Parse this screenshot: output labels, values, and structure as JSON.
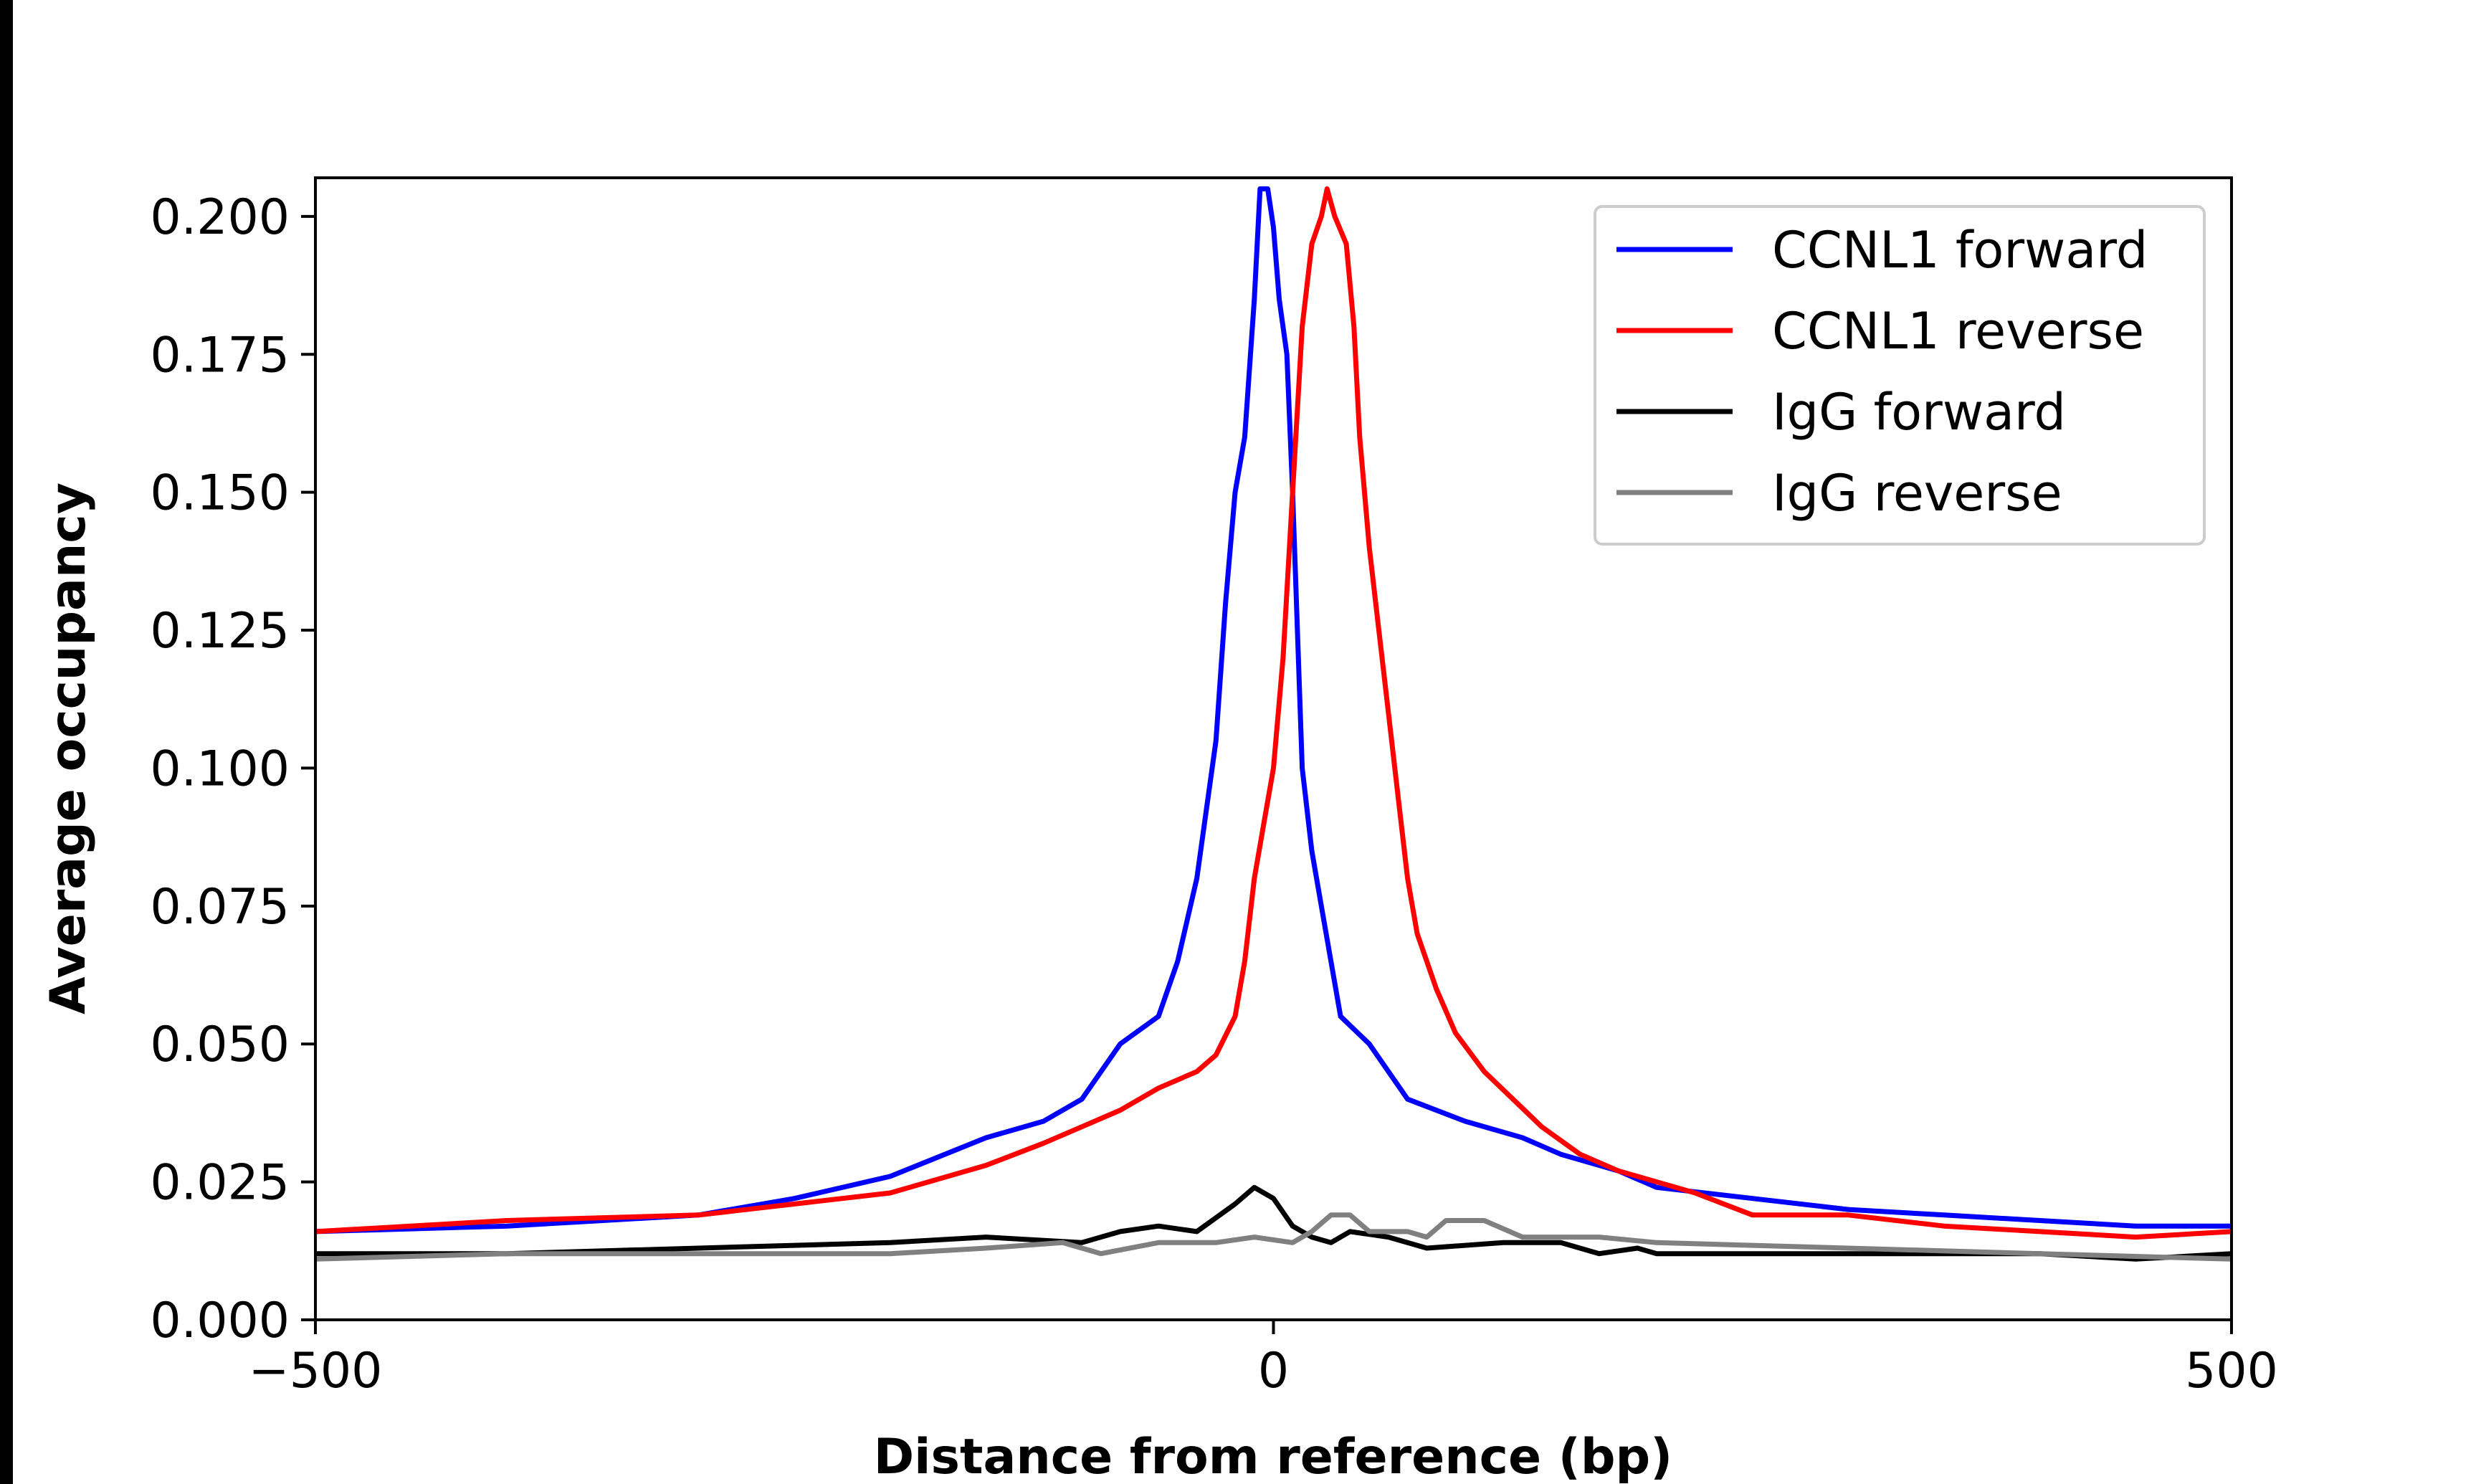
{
  "chart_data": {
    "type": "line",
    "title": "",
    "xlabel": "Distance from reference (bp)",
    "ylabel": "Average occupancy",
    "xlim": [
      -500,
      500
    ],
    "ylim": [
      0,
      0.207
    ],
    "xticks": [
      -500,
      0,
      500
    ],
    "xtick_labels": [
      "−500",
      "0",
      "500"
    ],
    "yticks": [
      0,
      0.025,
      0.05,
      0.075,
      0.1,
      0.125,
      0.15,
      0.175,
      0.2
    ],
    "ytick_labels": [
      "0.000",
      "0.025",
      "0.050",
      "0.075",
      "0.100",
      "0.125",
      "0.150",
      "0.175",
      "0.200"
    ],
    "grid": false,
    "legend_placement": "top-right",
    "series": [
      {
        "name": "CCNL1 forward",
        "color": "#0000ff",
        "x": [
          -500,
          -400,
          -350,
          -300,
          -250,
          -200,
          -150,
          -120,
          -100,
          -80,
          -60,
          -50,
          -40,
          -30,
          -25,
          -20,
          -15,
          -10,
          -7,
          -3,
          0,
          3,
          7,
          10,
          15,
          20,
          25,
          30,
          35,
          50,
          70,
          100,
          130,
          150,
          180,
          200,
          250,
          300,
          350,
          400,
          450,
          500
        ],
        "y": [
          0.016,
          0.017,
          0.018,
          0.019,
          0.022,
          0.026,
          0.033,
          0.036,
          0.04,
          0.05,
          0.055,
          0.065,
          0.08,
          0.105,
          0.13,
          0.15,
          0.16,
          0.185,
          0.205,
          0.205,
          0.198,
          0.185,
          0.175,
          0.15,
          0.1,
          0.085,
          0.075,
          0.065,
          0.055,
          0.05,
          0.04,
          0.036,
          0.033,
          0.03,
          0.027,
          0.024,
          0.022,
          0.02,
          0.019,
          0.018,
          0.017,
          0.017
        ]
      },
      {
        "name": "CCNL1 reverse",
        "color": "#ff0000",
        "x": [
          -500,
          -400,
          -300,
          -250,
          -200,
          -150,
          -120,
          -100,
          -80,
          -60,
          -40,
          -30,
          -20,
          -15,
          -10,
          -5,
          0,
          5,
          10,
          15,
          20,
          25,
          28,
          32,
          38,
          42,
          45,
          50,
          55,
          60,
          65,
          70,
          75,
          85,
          95,
          110,
          125,
          140,
          160,
          180,
          220,
          250,
          300,
          350,
          400,
          450,
          500
        ],
        "y": [
          0.016,
          0.018,
          0.019,
          0.021,
          0.023,
          0.028,
          0.032,
          0.035,
          0.038,
          0.042,
          0.045,
          0.048,
          0.055,
          0.065,
          0.08,
          0.09,
          0.1,
          0.12,
          0.15,
          0.18,
          0.195,
          0.2,
          0.205,
          0.2,
          0.195,
          0.18,
          0.16,
          0.14,
          0.125,
          0.11,
          0.095,
          0.08,
          0.07,
          0.06,
          0.052,
          0.045,
          0.04,
          0.035,
          0.03,
          0.027,
          0.023,
          0.019,
          0.019,
          0.017,
          0.016,
          0.015,
          0.016
        ]
      },
      {
        "name": "IgG forward",
        "color": "#000000",
        "x": [
          -500,
          -400,
          -300,
          -200,
          -150,
          -100,
          -80,
          -60,
          -40,
          -20,
          -10,
          0,
          10,
          20,
          30,
          40,
          60,
          80,
          120,
          150,
          170,
          190,
          200,
          300,
          400,
          450,
          500
        ],
        "y": [
          0.012,
          0.012,
          0.013,
          0.014,
          0.015,
          0.014,
          0.016,
          0.017,
          0.016,
          0.021,
          0.024,
          0.022,
          0.017,
          0.015,
          0.014,
          0.016,
          0.015,
          0.013,
          0.014,
          0.014,
          0.012,
          0.013,
          0.012,
          0.012,
          0.012,
          0.011,
          0.012
        ]
      },
      {
        "name": "IgG reverse",
        "color": "#808080",
        "x": [
          -500,
          -400,
          -300,
          -200,
          -150,
          -110,
          -90,
          -60,
          -30,
          -10,
          10,
          20,
          30,
          40,
          50,
          70,
          80,
          90,
          110,
          130,
          170,
          200,
          300,
          400,
          500
        ],
        "y": [
          0.011,
          0.012,
          0.012,
          0.012,
          0.013,
          0.014,
          0.012,
          0.014,
          0.014,
          0.015,
          0.014,
          0.016,
          0.019,
          0.019,
          0.016,
          0.016,
          0.015,
          0.018,
          0.018,
          0.015,
          0.015,
          0.014,
          0.013,
          0.012,
          0.011
        ]
      }
    ]
  }
}
